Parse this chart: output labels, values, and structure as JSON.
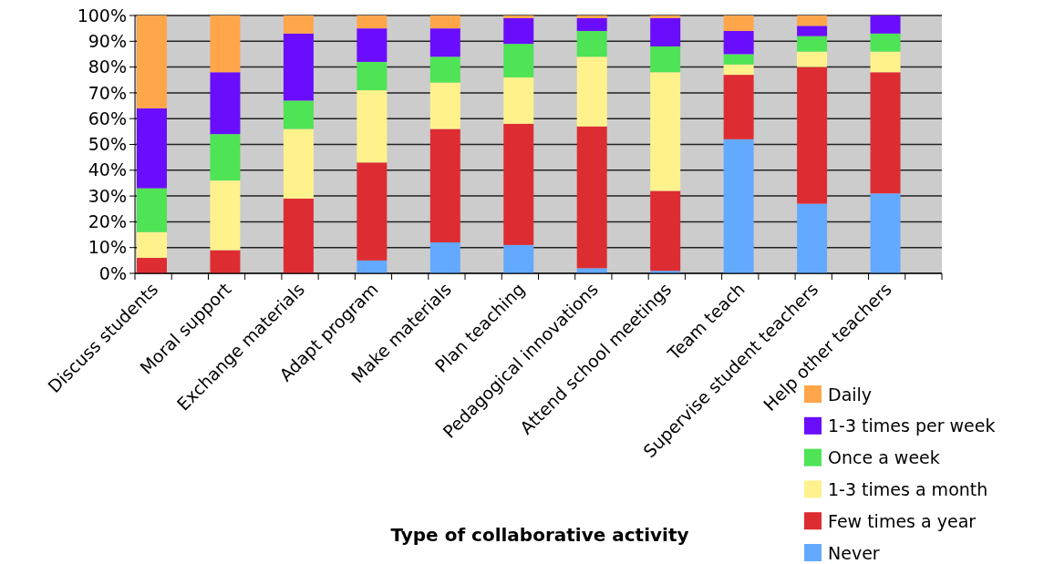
{
  "chart_data": {
    "type": "bar",
    "stacked": true,
    "xlabel": "Type of collaborative activity",
    "categories": [
      "Discuss students",
      "Moral support",
      "Exchange materials",
      "Adapt program",
      "Make materials",
      "Plan teaching",
      "Pedagogical innovations",
      "Attend school meetings",
      "Team teach",
      "Supervise student teachers",
      "Help other teachers"
    ],
    "series": [
      {
        "name": "Never",
        "color": "#63a9ff",
        "values": [
          0,
          0,
          0,
          5,
          12,
          11,
          2,
          1,
          52,
          27,
          31
        ]
      },
      {
        "name": "Few times a year",
        "color": "#dd2d32",
        "values": [
          6,
          9,
          29,
          38,
          44,
          47,
          55,
          31,
          25,
          53,
          47
        ]
      },
      {
        "name": "1-3 times a month",
        "color": "#fff28c",
        "values": [
          10,
          27,
          27,
          28,
          18,
          18,
          27,
          46,
          4,
          6,
          8
        ]
      },
      {
        "name": "Once a week",
        "color": "#4ee455",
        "values": [
          17,
          18,
          11,
          11,
          10,
          13,
          10,
          10,
          4,
          6,
          7
        ]
      },
      {
        "name": "1-3 times per week",
        "color": "#6a0dfc",
        "values": [
          31,
          24,
          26,
          13,
          11,
          10,
          5,
          11,
          9,
          4,
          7
        ]
      },
      {
        "name": "Daily",
        "color": "#ffa64a",
        "values": [
          36,
          22,
          7,
          5,
          5,
          1,
          1,
          1,
          6,
          4,
          0
        ]
      }
    ],
    "ylim": [
      0,
      100
    ],
    "yticks": [
      {
        "value": 0,
        "label": "0%"
      },
      {
        "value": 10,
        "label": "10%"
      },
      {
        "value": 20,
        "label": "20%"
      },
      {
        "value": 30,
        "label": "30%"
      },
      {
        "value": 40,
        "label": "40%"
      },
      {
        "value": 50,
        "label": "50%"
      },
      {
        "value": 60,
        "label": "60%"
      },
      {
        "value": 70,
        "label": "70%"
      },
      {
        "value": 80,
        "label": "80%"
      },
      {
        "value": 90,
        "label": "90%"
      },
      {
        "value": 100,
        "label": "100%"
      }
    ],
    "grid": "y",
    "legend": "bottom right"
  }
}
